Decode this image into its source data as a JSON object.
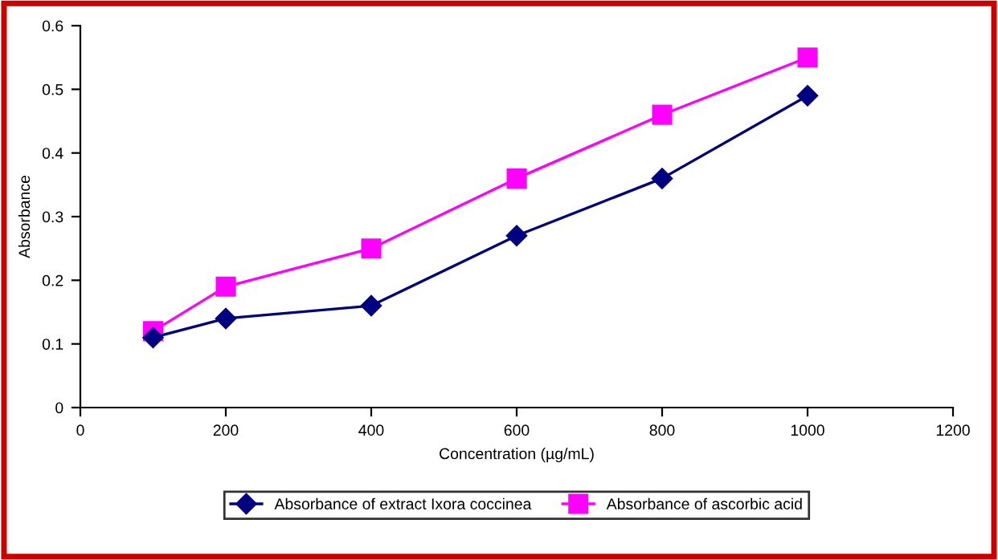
{
  "chart_data": {
    "type": "line",
    "xlabel": "Concentration (µg/mL)",
    "ylabel": "Absorbance",
    "xlim": [
      0,
      1200
    ],
    "xticks": [
      0,
      200,
      400,
      600,
      800,
      1000,
      1200
    ],
    "ylim": [
      0,
      0.6
    ],
    "yticks": [
      0,
      0.1,
      0.2,
      0.3,
      0.4,
      0.5,
      0.6
    ],
    "legend": "bottom",
    "grid": false,
    "series": [
      {
        "name": "Absorbance of extract Ixora coccinea",
        "color": "#000080",
        "marker": "diamond",
        "x": [
          100,
          200,
          400,
          600,
          800,
          1000
        ],
        "values": [
          0.11,
          0.14,
          0.16,
          0.27,
          0.36,
          0.49
        ]
      },
      {
        "name": "Absorbance of ascorbic acid",
        "color": "#ff00ff",
        "marker": "square",
        "x": [
          100,
          200,
          400,
          600,
          800,
          1000
        ],
        "values": [
          0.12,
          0.19,
          0.25,
          0.36,
          0.46,
          0.55
        ]
      }
    ]
  }
}
